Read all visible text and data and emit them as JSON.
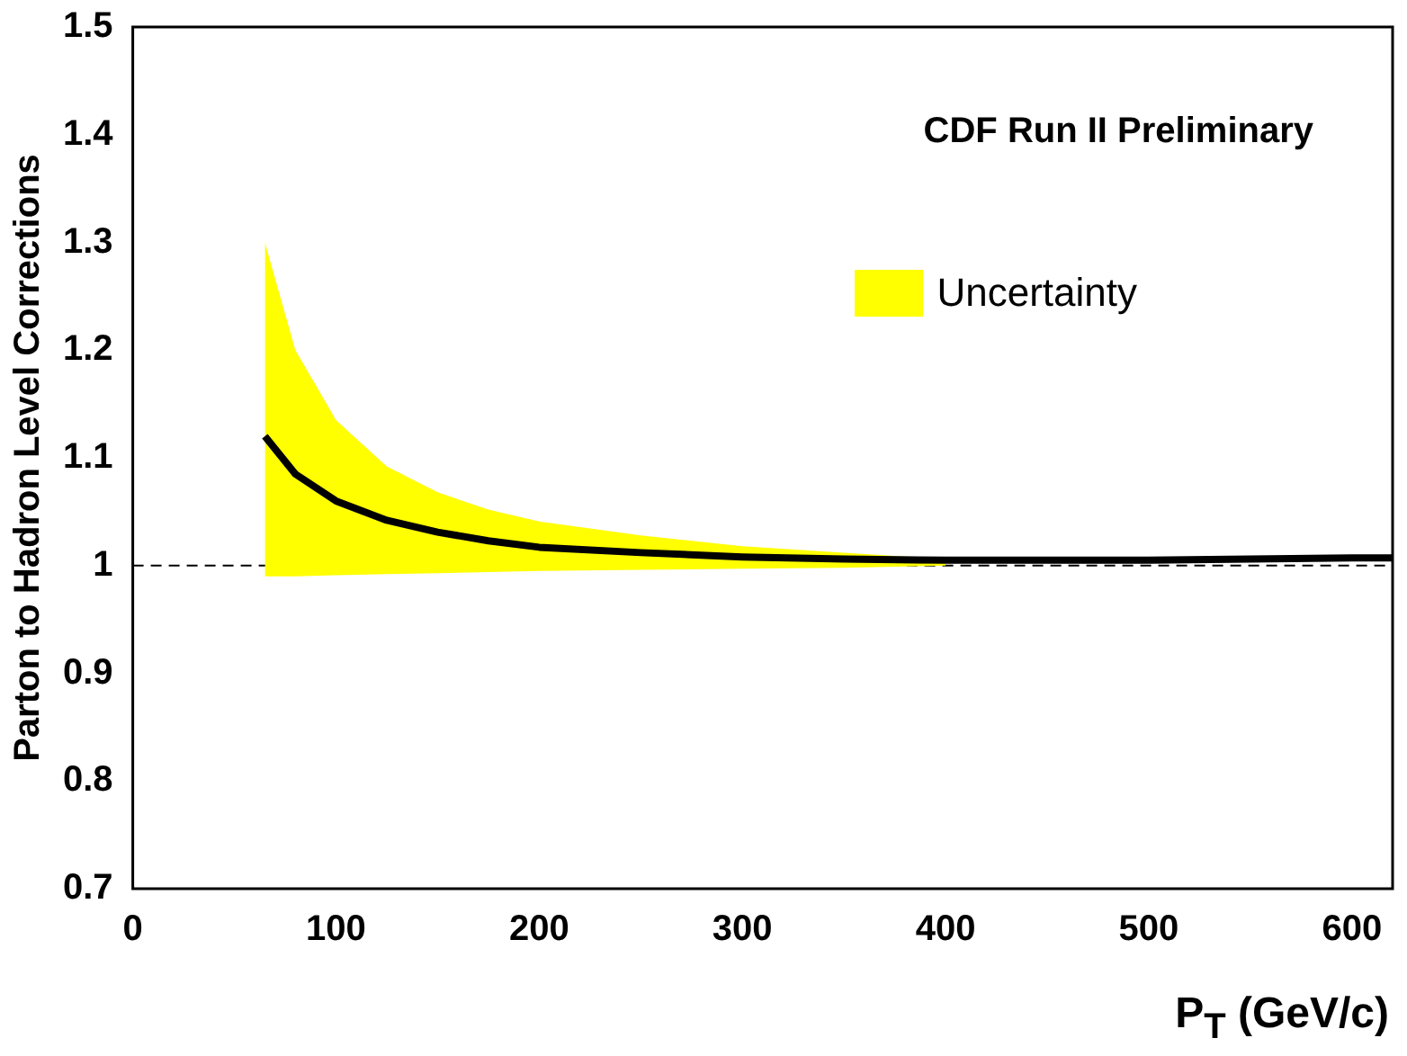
{
  "chart_data": {
    "type": "line",
    "xlabel": "P$_{T}$ (GeV/c)",
    "ylabel": "Parton to Hadron Level Corrections",
    "annotations": [
      "CDF Run II Preliminary"
    ],
    "x": [
      65,
      80,
      100,
      125,
      150,
      175,
      200,
      250,
      300,
      350,
      400,
      450,
      500,
      550,
      600,
      620
    ],
    "series": [
      {
        "name": "Uncertainty",
        "color": "#000000",
        "values": [
          1.12,
          1.085,
          1.06,
          1.042,
          1.031,
          1.023,
          1.017,
          1.012,
          1.008,
          1.006,
          1.005,
          1.005,
          1.005,
          1.006,
          1.007,
          1.007
        ],
        "upper": [
          1.3,
          1.2,
          1.135,
          1.092,
          1.068,
          1.052,
          1.041,
          1.028,
          1.018,
          1.012,
          1.006,
          null,
          null,
          null,
          null,
          null
        ],
        "lower": [
          0.99,
          0.99,
          0.991,
          0.992,
          0.993,
          0.994,
          0.995,
          0.996,
          0.997,
          0.998,
          1.0,
          null,
          null,
          null,
          null,
          null
        ]
      }
    ],
    "xlim": [
      0,
      620
    ],
    "xticks": [
      0,
      100,
      200,
      300,
      400,
      500,
      600
    ],
    "ylim": [
      0.7,
      1.5
    ],
    "yticks": [
      0.7,
      0.8,
      0.9,
      1,
      1.1,
      1.2,
      1.3,
      1.4,
      1.5
    ],
    "ref_lines": [
      {
        "axis": "y",
        "value": 1,
        "line_style": "dashed",
        "color": "#000000"
      }
    ],
    "grid": false,
    "legend": "top right",
    "marker": "none",
    "line_style": "solid"
  }
}
